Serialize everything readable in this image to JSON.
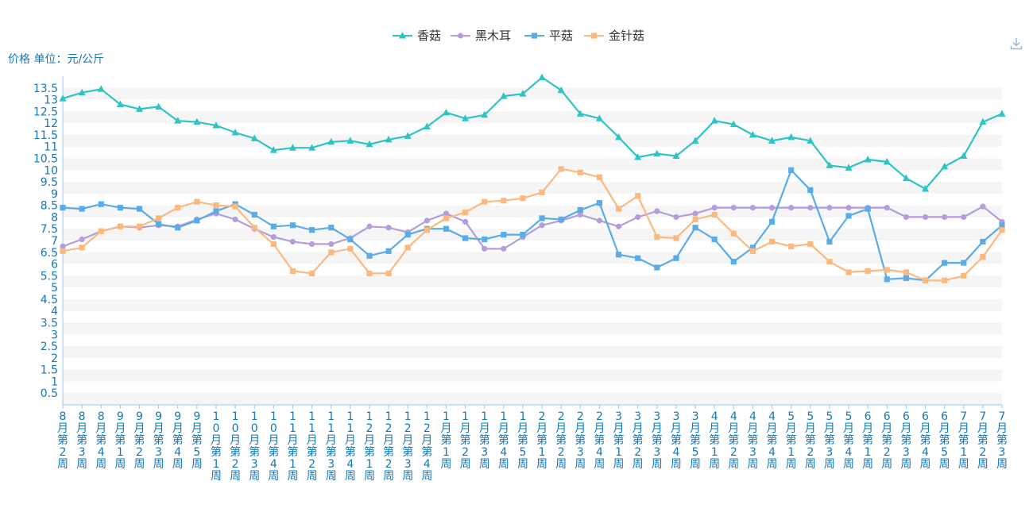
{
  "unit_label": "价格 单位：元/公斤",
  "toolbar": {
    "download_icon": "download-icon"
  },
  "colors": {
    "香菇": "#2ec4c4",
    "黑木耳": "#b39ddb",
    "平菇": "#59ace8",
    "金针菇": "#fbb97f",
    "axis_text": "#1677b5",
    "grid_band": "#f5f5f5"
  },
  "chart_data": {
    "type": "line",
    "title": "",
    "xlabel": "",
    "ylabel": "价格 单位：元/公斤",
    "ylim": [
      0,
      14
    ],
    "yticks": [
      0.5,
      1,
      1.5,
      2,
      2.5,
      3,
      3.5,
      4,
      4.5,
      5,
      5.5,
      6,
      6.5,
      7,
      7.5,
      8,
      8.5,
      9,
      9.5,
      10,
      10.5,
      11,
      11.5,
      12,
      12.5,
      13,
      13.5
    ],
    "legend_position": "top-center",
    "categories": [
      "8月第2周",
      "8月第3周",
      "8月第4周",
      "9月第1周",
      "9月第2周",
      "9月第3周",
      "9月第4周",
      "9月第5周",
      "10月第1周",
      "10月第2周",
      "10月第3周",
      "10月第4周",
      "11月第1周",
      "11月第2周",
      "11月第3周",
      "11月第4周",
      "12月第1周",
      "12月第2周",
      "12月第3周",
      "12月第4周",
      "1月第1周",
      "1月第2周",
      "1月第3周",
      "1月第4周",
      "1月第5周",
      "2月第1周",
      "2月第2周",
      "2月第3周",
      "2月第4周",
      "3月第1周",
      "3月第2周",
      "3月第3周",
      "3月第4周",
      "3月第5周",
      "4月第1周",
      "4月第2周",
      "4月第3周",
      "4月第4周",
      "5月第1周",
      "5月第2周",
      "5月第3周",
      "5月第4周",
      "6月第1周",
      "6月第2周",
      "6月第3周",
      "6月第4周",
      "6月第5周",
      "7月第1周",
      "7月第2周",
      "7月第3周"
    ],
    "series": [
      {
        "name": "香菇",
        "marker": "triangle",
        "values": [
          13.05,
          13.3,
          13.45,
          12.8,
          12.6,
          12.7,
          12.1,
          12.05,
          11.9,
          11.6,
          11.35,
          10.85,
          10.95,
          10.95,
          11.2,
          11.25,
          11.1,
          11.3,
          11.45,
          11.85,
          12.45,
          12.2,
          12.35,
          13.15,
          13.25,
          13.95,
          13.4,
          12.4,
          12.2,
          11.4,
          10.55,
          10.7,
          10.6,
          11.25,
          12.1,
          11.95,
          11.5,
          11.25,
          11.4,
          11.25,
          10.2,
          10.1,
          10.45,
          10.35,
          9.65,
          9.2,
          10.15,
          10.6,
          12.05,
          12.4
        ]
      },
      {
        "name": "黑木耳",
        "marker": "circle",
        "values": [
          6.75,
          7.05,
          7.4,
          7.6,
          7.55,
          7.65,
          7.6,
          7.9,
          8.15,
          7.9,
          7.5,
          7.15,
          6.95,
          6.85,
          6.85,
          7.1,
          7.6,
          7.55,
          7.35,
          7.85,
          8.15,
          7.8,
          6.65,
          6.65,
          7.15,
          7.65,
          7.85,
          8.1,
          7.85,
          7.6,
          8.0,
          8.25,
          8.0,
          8.15,
          8.4,
          8.4,
          8.4,
          8.4,
          8.4,
          8.4,
          8.4,
          8.4,
          8.4,
          8.4,
          8.0,
          8.0,
          8.0,
          8.0,
          8.45,
          7.8
        ]
      },
      {
        "name": "平菇",
        "marker": "square",
        "values": [
          8.4,
          8.35,
          8.55,
          8.4,
          8.35,
          7.7,
          7.55,
          7.85,
          8.25,
          8.55,
          8.1,
          7.6,
          7.65,
          7.45,
          7.55,
          7.05,
          6.35,
          6.55,
          7.25,
          7.5,
          7.5,
          7.1,
          7.05,
          7.25,
          7.25,
          7.95,
          7.9,
          8.3,
          8.6,
          6.4,
          6.25,
          5.85,
          6.25,
          7.55,
          7.05,
          6.1,
          6.7,
          7.8,
          10.0,
          9.15,
          6.95,
          8.05,
          8.35,
          5.35,
          5.4,
          5.3,
          6.05,
          6.05,
          6.95,
          7.65
        ]
      },
      {
        "name": "金针菇",
        "marker": "square",
        "values": [
          6.55,
          6.7,
          7.4,
          7.6,
          7.6,
          7.95,
          8.4,
          8.65,
          8.5,
          8.45,
          7.55,
          6.85,
          5.7,
          5.6,
          6.5,
          6.65,
          5.6,
          5.6,
          6.7,
          7.45,
          7.95,
          8.2,
          8.65,
          8.7,
          8.8,
          9.05,
          10.05,
          9.9,
          9.7,
          8.35,
          8.9,
          7.15,
          7.1,
          7.9,
          8.1,
          7.3,
          6.55,
          6.95,
          6.75,
          6.85,
          6.1,
          5.65,
          5.7,
          5.75,
          5.65,
          5.3,
          5.3,
          5.5,
          6.3,
          7.45
        ]
      }
    ]
  }
}
